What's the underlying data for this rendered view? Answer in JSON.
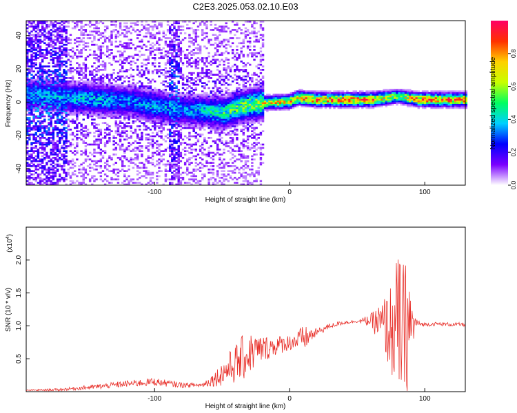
{
  "title": "C2E3.2025.053.02.10.E03",
  "chart_data": [
    {
      "type": "heatmap",
      "xlabel": "Height of straight line (km)",
      "ylabel": "Frequency (Hz)",
      "xlim": [
        -195,
        130
      ],
      "ylim": [
        -50,
        49
      ],
      "xticks": [
        -100,
        0,
        100
      ],
      "yticks": [
        -40,
        -20,
        0,
        20,
        40
      ],
      "colorbar": {
        "label": "Normalized spectral amplitude",
        "range": [
          0,
          1
        ],
        "ticks": [
          0.0,
          0.2,
          0.4,
          0.6,
          0.8
        ],
        "tick_labels": [
          "0.0",
          "0.2",
          "0.4",
          "0.6",
          "0.8"
        ],
        "colors": [
          "#ffffff",
          "#7a00ff",
          "#0000ff",
          "#00d0ff",
          "#00ff60",
          "#c8ff00",
          "#ffd000",
          "#ff3000",
          "#ff0066"
        ]
      },
      "ridge": {
        "x": [
          -190,
          -160,
          -140,
          -120,
          -100,
          -80,
          -60,
          -50,
          -40,
          -30,
          -20,
          0,
          5,
          20,
          60,
          80,
          95,
          130
        ],
        "frequency": [
          4,
          2,
          1,
          0,
          -3,
          -5,
          -6,
          -7,
          -4,
          -2,
          -1,
          0,
          2,
          1,
          1,
          3,
          1,
          1
        ],
        "peak_amplitude": [
          0.35,
          0.4,
          0.4,
          0.35,
          0.4,
          0.35,
          0.45,
          0.5,
          0.55,
          0.6,
          0.7,
          0.8,
          0.85,
          0.9,
          0.9,
          0.6,
          0.9,
          0.9
        ]
      }
    },
    {
      "type": "line",
      "xlabel": "Height of straight line (km)",
      "ylabel": "SNR (10 * v/v)",
      "multiplier": "(x10",
      "multiplier_exp": "4",
      "multiplier_close": ")",
      "xlim": [
        -195,
        130
      ],
      "ylim": [
        0,
        2.5
      ],
      "xticks": [
        -100,
        0,
        100
      ],
      "yticks": [
        0.5,
        1.0,
        1.5,
        2.0
      ],
      "ytick_labels": [
        "0.5",
        "1.0",
        "1.5",
        "2.0"
      ],
      "color": "#e8302a",
      "series": [
        {
          "x": [
            -195,
            -170,
            -140,
            -120,
            -100,
            -80,
            -65,
            -55,
            -45,
            -35,
            -28,
            -20,
            -10,
            0,
            10,
            20,
            30,
            40,
            50,
            60,
            65,
            70,
            75,
            78,
            80,
            83,
            86,
            88,
            90,
            93,
            96,
            100,
            110,
            120,
            130
          ],
          "values": [
            0.02,
            0.03,
            0.08,
            0.12,
            0.15,
            0.1,
            0.1,
            0.2,
            0.35,
            0.5,
            0.6,
            0.65,
            0.7,
            0.75,
            0.8,
            0.9,
            1.0,
            1.05,
            1.07,
            1.08,
            1.05,
            1.0,
            0.95,
            0.9,
            1.0,
            0.95,
            0.9,
            1.0,
            0.95,
            1.05,
            1.03,
            1.02,
            1.03,
            1.02,
            1.02
          ],
          "noise": [
            0.01,
            0.02,
            0.04,
            0.05,
            0.06,
            0.04,
            0.03,
            0.12,
            0.25,
            0.35,
            0.3,
            0.2,
            0.15,
            0.12,
            0.2,
            0.06,
            0.04,
            0.03,
            0.02,
            0.1,
            0.25,
            0.45,
            0.7,
            0.9,
            1.2,
            1.0,
            1.1,
            1.2,
            0.6,
            0.1,
            0.04,
            0.03,
            0.03,
            0.03,
            0.03
          ]
        }
      ]
    }
  ]
}
